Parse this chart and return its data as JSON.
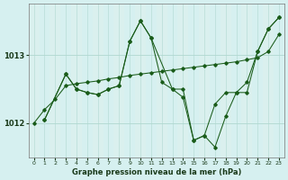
{
  "title": "Graphe pression niveau de la mer (hPa)",
  "background_color": "#d6f0f0",
  "stripe_color": "#e8f8f5",
  "grid_color": "#b0d8d0",
  "line_color": "#1a5c1a",
  "xlim": [
    -0.5,
    23.5
  ],
  "ylim": [
    1011.5,
    1013.75
  ],
  "yticks": [
    1012,
    1013
  ],
  "xticks": [
    0,
    1,
    2,
    3,
    4,
    5,
    6,
    7,
    8,
    9,
    10,
    11,
    12,
    13,
    14,
    15,
    16,
    17,
    18,
    19,
    20,
    21,
    22,
    23
  ],
  "series1_x": [
    0,
    1,
    2,
    3,
    4,
    5,
    6,
    7,
    8,
    9,
    10,
    11,
    12,
    13,
    14,
    15,
    16,
    17,
    18,
    19,
    20,
    21,
    22,
    23
  ],
  "series1_y": [
    1012.0,
    1012.2,
    1012.35,
    1012.55,
    1012.58,
    1012.6,
    1012.62,
    1012.65,
    1012.67,
    1012.7,
    1012.72,
    1012.74,
    1012.76,
    1012.78,
    1012.8,
    1012.82,
    1012.84,
    1012.86,
    1012.88,
    1012.9,
    1012.93,
    1012.96,
    1013.05,
    1013.3
  ],
  "series2_x": [
    1,
    3,
    4,
    5,
    6,
    7,
    8,
    9,
    10,
    11,
    12,
    13,
    14,
    15,
    16,
    17,
    18,
    19,
    20,
    21,
    22,
    23
  ],
  "series2_y": [
    1012.05,
    1012.72,
    1012.5,
    1012.45,
    1012.42,
    1012.5,
    1012.55,
    1013.2,
    1013.5,
    1013.25,
    1012.6,
    1012.5,
    1012.38,
    1011.75,
    1011.82,
    1011.65,
    1012.1,
    1012.45,
    1012.45,
    1013.05,
    1013.38,
    1013.55
  ],
  "series3_x": [
    1,
    3,
    4,
    5,
    6,
    7,
    8,
    9,
    10,
    11,
    13,
    14,
    15,
    16,
    17,
    18,
    19,
    20,
    21,
    22,
    23
  ],
  "series3_y": [
    1012.05,
    1012.72,
    1012.5,
    1012.45,
    1012.42,
    1012.5,
    1012.55,
    1013.2,
    1013.5,
    1013.25,
    1012.5,
    1012.5,
    1011.75,
    1011.82,
    1012.28,
    1012.45,
    1012.45,
    1012.6,
    1013.05,
    1013.38,
    1013.55
  ]
}
